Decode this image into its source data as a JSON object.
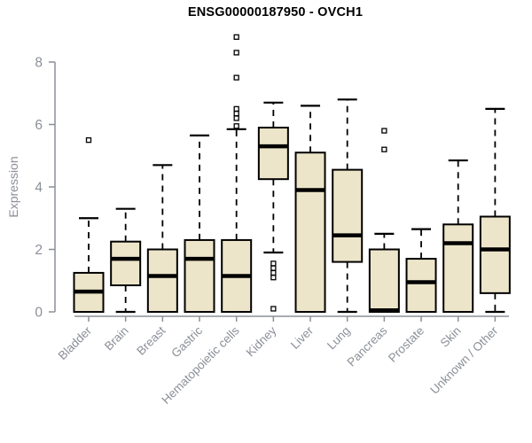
{
  "chart_data": {
    "type": "boxplot",
    "title": "ENSG00000187950 - OVCH1",
    "ylabel": "Expression",
    "xlabel": "",
    "yticks": [
      0,
      2,
      4,
      6,
      8
    ],
    "ylim": [
      0,
      8.85
    ],
    "grid": false,
    "categories": [
      "Bladder",
      "Brain",
      "Breast",
      "Gastric",
      "Hematopoietic cells",
      "Kidney",
      "Liver",
      "Lung",
      "Pancreas",
      "Prostate",
      "Skin",
      "Unknown / Other"
    ],
    "series": [
      {
        "category": "Bladder",
        "whisker_low": 0,
        "q1": 0,
        "median": 0.65,
        "q3": 1.25,
        "whisker_high": 3.0,
        "outliers": [
          5.5
        ]
      },
      {
        "category": "Brain",
        "whisker_low": 0,
        "q1": 0.85,
        "median": 1.7,
        "q3": 2.25,
        "whisker_high": 3.3,
        "outliers": []
      },
      {
        "category": "Breast",
        "whisker_low": 0,
        "q1": 0,
        "median": 1.15,
        "q3": 2.0,
        "whisker_high": 4.7,
        "outliers": []
      },
      {
        "category": "Gastric",
        "whisker_low": 0,
        "q1": 0,
        "median": 1.7,
        "q3": 2.3,
        "whisker_high": 5.65,
        "outliers": []
      },
      {
        "category": "Hematopoietic cells",
        "whisker_low": 0,
        "q1": 0,
        "median": 1.15,
        "q3": 2.3,
        "whisker_high": 5.85,
        "outliers": [
          5.95,
          6.2,
          6.35,
          6.5,
          7.5,
          8.3,
          8.8
        ]
      },
      {
        "category": "Kidney",
        "whisker_low": 1.9,
        "q1": 4.25,
        "median": 5.3,
        "q3": 5.9,
        "whisker_high": 6.7,
        "outliers": [
          1.55,
          1.4,
          1.25,
          1.1,
          0.1
        ]
      },
      {
        "category": "Liver",
        "whisker_low": 0,
        "q1": 0,
        "median": 3.9,
        "q3": 5.1,
        "whisker_high": 6.6,
        "outliers": []
      },
      {
        "category": "Lung",
        "whisker_low": 0,
        "q1": 1.6,
        "median": 2.45,
        "q3": 4.55,
        "whisker_high": 6.8,
        "outliers": []
      },
      {
        "category": "Pancreas",
        "whisker_low": 0,
        "q1": 0,
        "median": 0.05,
        "q3": 2.0,
        "whisker_high": 2.5,
        "outliers": [
          5.2,
          5.8
        ]
      },
      {
        "category": "Prostate",
        "whisker_low": 0,
        "q1": 0,
        "median": 0.95,
        "q3": 1.7,
        "whisker_high": 2.65,
        "outliers": []
      },
      {
        "category": "Skin",
        "whisker_low": 0,
        "q1": 0,
        "median": 2.2,
        "q3": 2.8,
        "whisker_high": 4.85,
        "outliers": []
      },
      {
        "category": "Unknown / Other",
        "whisker_low": 0,
        "q1": 0.6,
        "median": 2.0,
        "q3": 3.05,
        "whisker_high": 6.5,
        "outliers": []
      }
    ],
    "colors": {
      "box_fill": "#ede5c9",
      "box_stroke": "#000000",
      "median": "#000000",
      "axis": "#8b8f98",
      "tick_label": "#8b8f98",
      "title": "#000000",
      "background": "#ffffff"
    }
  }
}
